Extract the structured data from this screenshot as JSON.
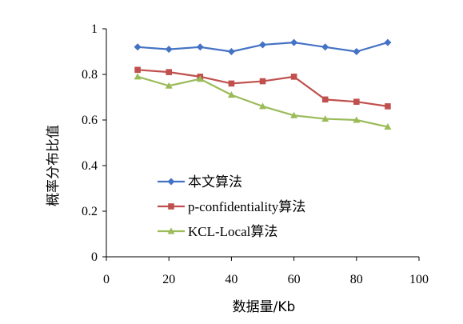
{
  "chart_data": {
    "type": "line",
    "title": "",
    "xlabel": "数据量/Kb",
    "ylabel": "概率分布比值",
    "xlim": [
      0,
      100
    ],
    "ylim": [
      0,
      1
    ],
    "x_ticks": [
      0,
      20,
      40,
      60,
      80,
      100
    ],
    "x_tick_labels": [
      "0",
      "20",
      "40",
      "60",
      "80",
      "100"
    ],
    "y_ticks": [
      0,
      0.2,
      0.4,
      0.6,
      0.8,
      1
    ],
    "y_tick_labels": [
      "0",
      "0.2",
      "0.4",
      "0.6",
      "0.8",
      "1"
    ],
    "grid": false,
    "legend_position": "bottom-left (inside plot)",
    "x": [
      10,
      20,
      30,
      40,
      50,
      60,
      70,
      80,
      90
    ],
    "series": [
      {
        "name": "本文算法",
        "color": "#4472C4",
        "marker": "diamond",
        "values": [
          0.92,
          0.91,
          0.92,
          0.9,
          0.93,
          0.94,
          0.92,
          0.9,
          0.94
        ]
      },
      {
        "name": "p-confidentiality算法",
        "color": "#C0504D",
        "marker": "square",
        "values": [
          0.82,
          0.81,
          0.79,
          0.76,
          0.77,
          0.79,
          0.69,
          0.68,
          0.66
        ]
      },
      {
        "name": "KCL-Local算法",
        "color": "#9BBB59",
        "marker": "triangle",
        "values": [
          0.79,
          0.75,
          0.78,
          0.71,
          0.66,
          0.62,
          0.605,
          0.6,
          0.57
        ]
      }
    ]
  }
}
